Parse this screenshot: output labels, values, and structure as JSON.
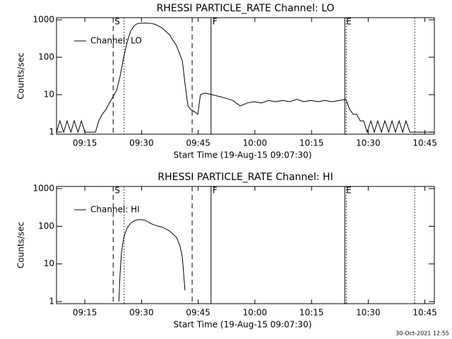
{
  "chart_data": [
    {
      "type": "line",
      "title": "RHESSI PARTICLE_RATE Channel: LO",
      "x_label": "Start Time (19-Aug-15 09:07:30)",
      "y_label": "Counts/sec",
      "log_y": true,
      "xlim": [
        547.5,
        647.5
      ],
      "ylim": [
        0.88,
        1140
      ],
      "xticks": [
        {
          "value": 555,
          "label": "09:15"
        },
        {
          "value": 570,
          "label": "09:30"
        },
        {
          "value": 585,
          "label": "09:45"
        },
        {
          "value": 600,
          "label": "10:00"
        },
        {
          "value": 615,
          "label": "10:15"
        },
        {
          "value": 630,
          "label": "10:30"
        },
        {
          "value": 645,
          "label": "10:45"
        }
      ],
      "yticks": [
        1,
        10,
        100,
        1000
      ],
      "vlines": [
        {
          "x": 562.5,
          "style": "dashed",
          "label": "S"
        },
        {
          "x": 565.4,
          "style": "dotted"
        },
        {
          "x": 583.4,
          "style": "dashed"
        },
        {
          "x": 588.4,
          "style": "solid",
          "label": "F"
        },
        {
          "x": 623.8,
          "style": "solid",
          "label": "E"
        },
        {
          "x": 624.2,
          "style": "dotted"
        },
        {
          "x": 642.3,
          "style": "dotted"
        }
      ],
      "x": [
        547.5,
        548.4,
        549.4,
        550.3,
        551.3,
        552.2,
        553.2,
        554.1,
        555.0,
        557.8,
        558.7,
        559.6,
        560.6,
        561.5,
        562.5,
        563.4,
        564.3,
        565.3,
        566.2,
        567.1,
        568.1,
        569.0,
        570.9,
        572.7,
        573.7,
        575.5,
        577.4,
        579.3,
        580.8,
        581.5,
        582.3,
        583.0,
        584.0,
        584.9,
        585.6,
        586.8,
        588.6,
        590.5,
        592.4,
        594.2,
        596.1,
        598.0,
        599.8,
        601.7,
        603.6,
        605.4,
        607.3,
        609.2,
        611.1,
        612.9,
        614.8,
        616.7,
        618.5,
        620.4,
        622.3,
        624.1,
        625.1,
        626.0,
        626.9,
        627.9,
        628.8,
        629.7,
        630.7,
        631.6,
        632.5,
        633.5,
        634.4,
        635.4,
        636.3,
        637.2,
        638.2,
        639.1,
        640.0,
        641.0,
        641.9,
        647.5
      ],
      "series": [
        {
          "name": "Channel: LO",
          "color": "#000000",
          "values": [
            1,
            2,
            1,
            2,
            1,
            2,
            1,
            2,
            1,
            1,
            2,
            3,
            4,
            6,
            9,
            13,
            30,
            100,
            250,
            500,
            700,
            800,
            820,
            800,
            750,
            600,
            400,
            200,
            80,
            20,
            5,
            4,
            3.5,
            3,
            10,
            11,
            10,
            9,
            8,
            7,
            5,
            6,
            6.5,
            6,
            7,
            6.5,
            7,
            6.5,
            7.5,
            6.5,
            7,
            6.5,
            7,
            6.5,
            7,
            7.5,
            4,
            3,
            3,
            2,
            2,
            1,
            2,
            1,
            2,
            1,
            2,
            1,
            2,
            1,
            2,
            1,
            2,
            1,
            1,
            1
          ]
        }
      ]
    },
    {
      "type": "line",
      "title": "RHESSI PARTICLE_RATE Channel: HI",
      "x_label": "Start Time (19-Aug-15 09:07:30)",
      "y_label": "Counts/sec",
      "log_y": true,
      "xlim": [
        547.5,
        647.5
      ],
      "ylim": [
        0.88,
        1140
      ],
      "xticks": [
        {
          "value": 555,
          "label": "09:15"
        },
        {
          "value": 570,
          "label": "09:30"
        },
        {
          "value": 585,
          "label": "09:45"
        },
        {
          "value": 600,
          "label": "10:00"
        },
        {
          "value": 615,
          "label": "10:15"
        },
        {
          "value": 630,
          "label": "10:30"
        },
        {
          "value": 645,
          "label": "10:45"
        }
      ],
      "yticks": [
        1,
        10,
        100,
        1000
      ],
      "vlines": [
        {
          "x": 562.5,
          "style": "dashed",
          "label": "S"
        },
        {
          "x": 565.4,
          "style": "dotted"
        },
        {
          "x": 583.4,
          "style": "dashed"
        },
        {
          "x": 588.4,
          "style": "solid",
          "label": "F"
        },
        {
          "x": 623.8,
          "style": "solid",
          "label": "E"
        },
        {
          "x": 624.2,
          "style": "dotted"
        },
        {
          "x": 642.3,
          "style": "dotted"
        }
      ],
      "x": [
        564.0,
        564.3,
        564.7,
        565.3,
        566.2,
        567.1,
        568.1,
        569.0,
        569.9,
        570.9,
        571.8,
        572.7,
        573.7,
        575.5,
        577.4,
        579.3,
        580.2,
        580.8,
        581.5
      ],
      "series": [
        {
          "name": "Channel: HI",
          "color": "#000000",
          "values": [
            1,
            5,
            20,
            50,
            90,
            120,
            140,
            150,
            150,
            145,
            130,
            115,
            105,
            95,
            75,
            50,
            30,
            15,
            2
          ]
        }
      ]
    }
  ],
  "footer": "30-Oct-2021 12:55"
}
